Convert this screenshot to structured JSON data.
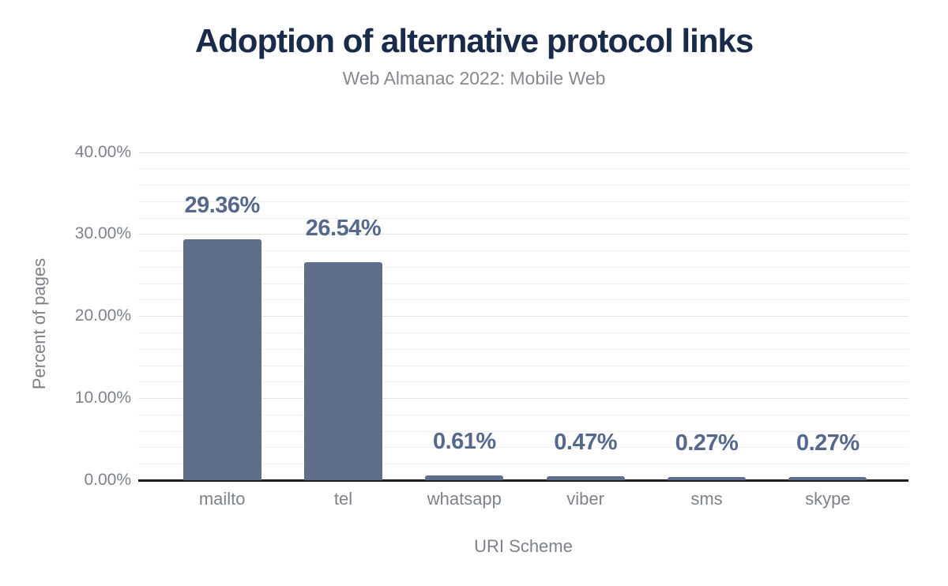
{
  "chart_data": {
    "type": "bar",
    "title": "Adoption of alternative protocol links",
    "subtitle": "Web Almanac 2022: Mobile Web",
    "categories": [
      "mailto",
      "tel",
      "whatsapp",
      "viber",
      "sms",
      "skype"
    ],
    "values": [
      29.36,
      26.54,
      0.61,
      0.47,
      0.27,
      0.27
    ],
    "value_labels": [
      "29.36%",
      "26.54%",
      "0.61%",
      "0.47%",
      "0.27%",
      "0.27%"
    ],
    "xlabel": "URI Scheme",
    "ylabel": "Percent of pages",
    "ylim": [
      0,
      40
    ],
    "y_ticks": [
      0,
      10,
      20,
      30,
      40
    ],
    "y_tick_labels": [
      "0.00%",
      "10.00%",
      "20.00%",
      "30.00%",
      "40.00%"
    ],
    "minor_grid_step": 2,
    "grid": true,
    "legend": "none",
    "colors": {
      "background": "#ffffff",
      "bar": "#5f6e8b",
      "data_label": "#56688c",
      "title": "#1a2b49",
      "subtitle": "#87898e",
      "axis_text": "#7d828a",
      "axis_line": "#1f1f1f",
      "grid_major": "#e3e3e3",
      "grid_minor": "#f1f1f1"
    }
  }
}
